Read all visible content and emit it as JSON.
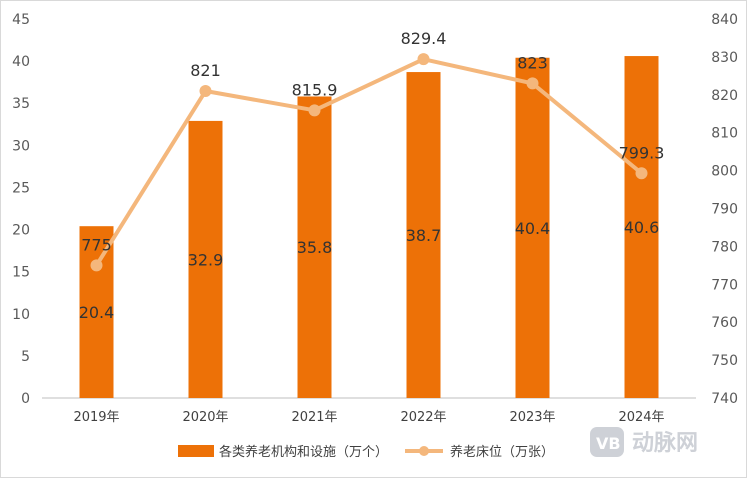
{
  "chart_data": {
    "type": "bar+line",
    "categories": [
      "2019年",
      "2020年",
      "2021年",
      "2022年",
      "2023年",
      "2024年"
    ],
    "series": [
      {
        "name": "各类养老机构和设施（万个）",
        "type": "bar",
        "axis": "left",
        "values": [
          20.4,
          32.9,
          35.8,
          38.7,
          40.4,
          40.6
        ]
      },
      {
        "name": "养老床位（万张）",
        "type": "line",
        "axis": "right",
        "values": [
          775,
          821,
          815.9,
          829.4,
          823,
          799.3
        ]
      }
    ],
    "value_labels": {
      "bars": [
        "20.4",
        "32.9",
        "35.8",
        "38.7",
        "40.4",
        "40.6"
      ],
      "line": [
        "775",
        "821",
        "815.9",
        "829.4",
        "823",
        "799.3"
      ]
    },
    "y_left": {
      "min": 0,
      "max": 45,
      "step": 5
    },
    "y_right": {
      "min": 740,
      "max": 840,
      "step": 10
    },
    "legend_position": "bottom",
    "grid": false
  },
  "colors": {
    "bar": "#ED7107",
    "line": "#F4B77C",
    "axis": "#BFBFBF",
    "border": "#D9D9D9",
    "watermark": "#C9CDD3"
  },
  "watermark": {
    "badge": "VB",
    "text": "动脉网"
  }
}
